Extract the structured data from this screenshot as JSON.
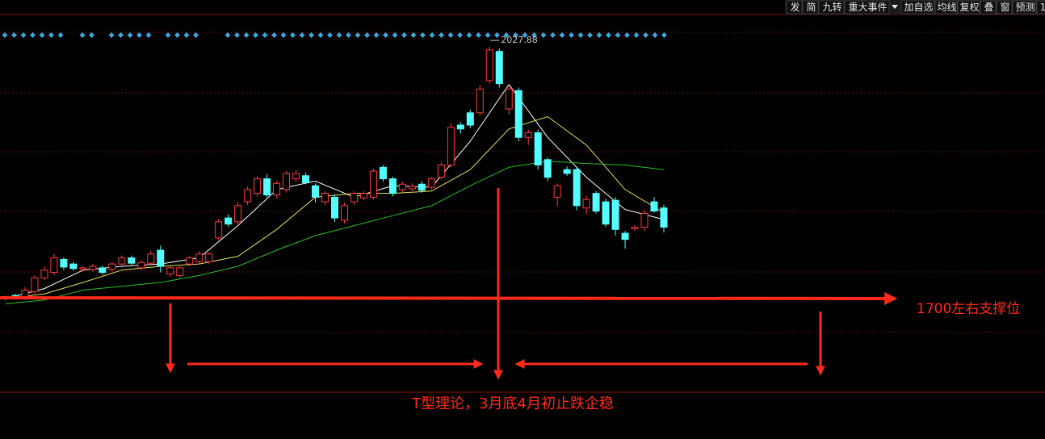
{
  "toolbar": [
    "发",
    "简",
    "九转",
    "重大事件",
    "加自选",
    "均线",
    "复权",
    "叠",
    "窗",
    "预测",
    "1"
  ],
  "chart_data": {
    "type": "candlestick",
    "ylim": [
      1579,
      2089
    ],
    "up_color": "#ff3b3b",
    "down_color": "#54ffff",
    "ohlc": [
      [
        1700,
        1704,
        1697,
        1702
      ],
      [
        1704,
        1706,
        1700,
        1702
      ],
      [
        1702,
        1715,
        1700,
        1711
      ],
      [
        1709,
        1730,
        1706,
        1727
      ],
      [
        1727,
        1742,
        1724,
        1737
      ],
      [
        1734,
        1758,
        1730,
        1753
      ],
      [
        1751,
        1754,
        1737,
        1741
      ],
      [
        1745,
        1748,
        1736,
        1739
      ],
      [
        1738,
        1742,
        1735,
        1740
      ],
      [
        1738,
        1745,
        1735,
        1742
      ],
      [
        1740,
        1743,
        1731,
        1734
      ],
      [
        1738,
        1748,
        1735,
        1745
      ],
      [
        1745,
        1756,
        1742,
        1753
      ],
      [
        1753,
        1756,
        1744,
        1746
      ],
      [
        1740,
        1750,
        1737,
        1747
      ],
      [
        1746,
        1762,
        1743,
        1758
      ],
      [
        1763,
        1769,
        1734,
        1742
      ],
      [
        1732,
        1742,
        1728,
        1740
      ],
      [
        1730,
        1742,
        1727,
        1740
      ],
      [
        1745,
        1756,
        1742,
        1753
      ],
      [
        1748,
        1762,
        1745,
        1758
      ],
      [
        1748,
        1760,
        1745,
        1758
      ],
      [
        1779,
        1804,
        1776,
        1800
      ],
      [
        1805,
        1810,
        1793,
        1797
      ],
      [
        1800,
        1826,
        1797,
        1821
      ],
      [
        1826,
        1846,
        1822,
        1842
      ],
      [
        1837,
        1860,
        1833,
        1856
      ],
      [
        1856,
        1862,
        1832,
        1835
      ],
      [
        1835,
        1853,
        1831,
        1850
      ],
      [
        1842,
        1866,
        1838,
        1863
      ],
      [
        1856,
        1867,
        1852,
        1863
      ],
      [
        1860,
        1864,
        1849,
        1851
      ],
      [
        1847,
        1850,
        1825,
        1832
      ],
      [
        1826,
        1840,
        1822,
        1837
      ],
      [
        1832,
        1836,
        1800,
        1805
      ],
      [
        1802,
        1825,
        1798,
        1821
      ],
      [
        1826,
        1840,
        1822,
        1837
      ],
      [
        1831,
        1840,
        1828,
        1837
      ],
      [
        1832,
        1869,
        1829,
        1866
      ],
      [
        1871,
        1874,
        1852,
        1856
      ],
      [
        1856,
        1859,
        1833,
        1837
      ],
      [
        1842,
        1852,
        1838,
        1849
      ],
      [
        1843,
        1850,
        1840,
        1846
      ],
      [
        1849,
        1853,
        1838,
        1841
      ],
      [
        1845,
        1858,
        1842,
        1856
      ],
      [
        1858,
        1878,
        1855,
        1874
      ],
      [
        1874,
        1928,
        1870,
        1923
      ],
      [
        1926,
        1930,
        1915,
        1921
      ],
      [
        1942,
        1946,
        1922,
        1926
      ],
      [
        1942,
        1978,
        1938,
        1973
      ],
      [
        1984,
        2027.88,
        1980,
        2024
      ],
      [
        2022,
        2026,
        1975,
        1980
      ],
      [
        1947,
        1980,
        1940,
        1973
      ],
      [
        1971,
        1975,
        1905,
        1910
      ],
      [
        1910,
        1920,
        1900,
        1916
      ],
      [
        1916,
        1920,
        1868,
        1874
      ],
      [
        1881,
        1884,
        1853,
        1858
      ],
      [
        1832,
        1850,
        1820,
        1847
      ],
      [
        1868,
        1872,
        1860,
        1863
      ],
      [
        1868,
        1871,
        1815,
        1821
      ],
      [
        1818,
        1834,
        1810,
        1829
      ],
      [
        1837,
        1840,
        1811,
        1814
      ],
      [
        1826,
        1830,
        1793,
        1797
      ],
      [
        1828,
        1832,
        1782,
        1790
      ],
      [
        1785,
        1788,
        1765,
        1777
      ],
      [
        1791,
        1796,
        1788,
        1793
      ],
      [
        1793,
        1816,
        1788,
        1811
      ],
      [
        1826,
        1832,
        1812,
        1814
      ],
      [
        1818,
        1822,
        1786,
        1793
      ]
    ],
    "series": [
      {
        "color": "#ffffff",
        "x": [
          0,
          4,
          8,
          12,
          16,
          20,
          24,
          28,
          32,
          36,
          40,
          44,
          48,
          52,
          56,
          60,
          64,
          68
        ],
        "values": [
          1700,
          1713,
          1737,
          1742,
          1745,
          1753,
          1795,
          1842,
          1853,
          1832,
          1847,
          1845,
          1905,
          1979,
          1910,
          1858,
          1816,
          1803
        ]
      },
      {
        "color": "#e8e05a",
        "x": [
          0,
          4,
          8,
          12,
          16,
          20,
          24,
          28,
          32,
          36,
          40,
          44,
          48,
          52,
          56,
          60,
          64,
          68
        ],
        "values": [
          1700,
          1706,
          1721,
          1737,
          1742,
          1745,
          1755,
          1790,
          1832,
          1837,
          1837,
          1840,
          1868,
          1921,
          1937,
          1900,
          1842,
          1812
        ]
      },
      {
        "color": "#2bbf2b",
        "x": [
          0,
          4,
          8,
          12,
          16,
          20,
          24,
          28,
          32,
          36,
          40,
          44,
          48,
          52,
          56,
          60,
          64,
          68
        ],
        "values": [
          1693,
          1698,
          1711,
          1716,
          1721,
          1730,
          1742,
          1763,
          1782,
          1795,
          1808,
          1821,
          1847,
          1871,
          1879,
          1876,
          1874,
          1868
        ]
      }
    ],
    "annotations": [
      "1700左右支撑位",
      "T型理论，3月底4月初止跌企稳"
    ]
  }
}
